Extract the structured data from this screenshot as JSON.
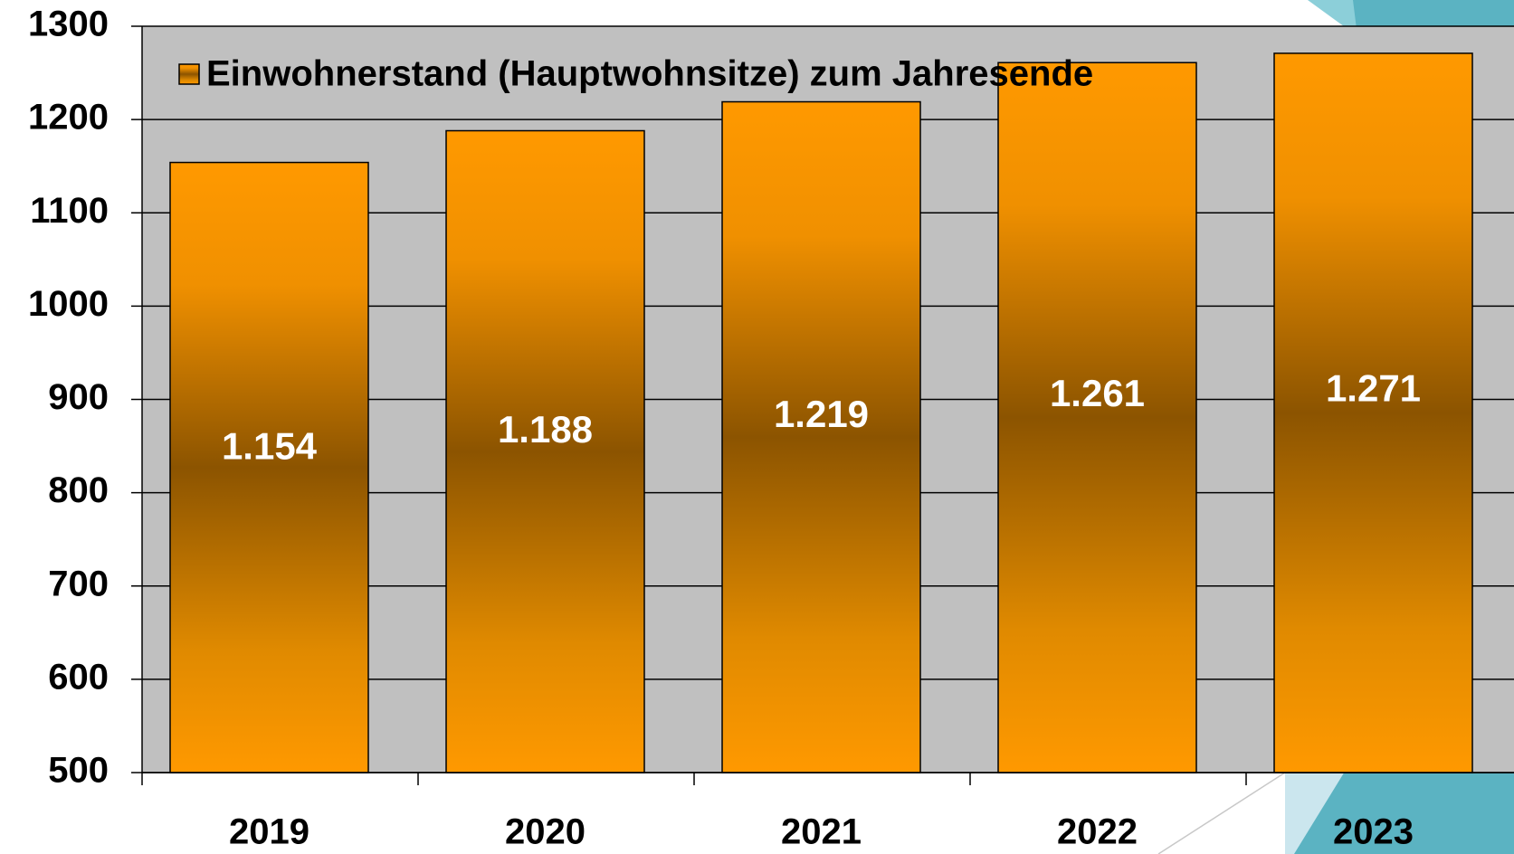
{
  "chart_data": {
    "type": "bar",
    "categories": [
      "2019",
      "2020",
      "2021",
      "2022",
      "2023"
    ],
    "series": [
      {
        "name": "Einwohnerstand (Hauptwohnsitze) zum Jahresende",
        "color": "#ff9900",
        "values": [
          1154,
          1188,
          1219,
          1261,
          1271
        ],
        "value_labels": [
          "1.154",
          "1.188",
          "1.219",
          "1.261",
          "1.271"
        ]
      }
    ],
    "ylim": [
      500,
      1300
    ],
    "yticks": [
      500,
      600,
      700,
      800,
      900,
      1000,
      1100,
      1200,
      1300
    ],
    "grid": true,
    "legend": "top-left"
  }
}
